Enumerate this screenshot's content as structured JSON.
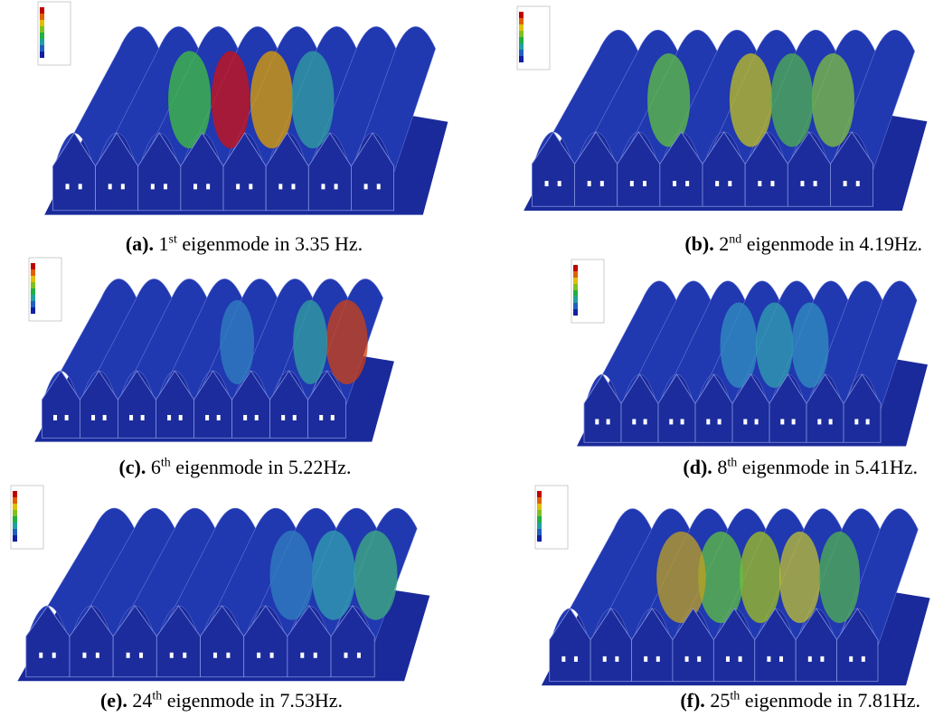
{
  "panels": [
    {
      "label": "(a).",
      "ordinal": "1",
      "suffix": "st",
      "text": "eigenmode in 3.35 Hz."
    },
    {
      "label": "(b).",
      "ordinal": "2",
      "suffix": "nd",
      "text": "eigenmode in 4.19Hz."
    },
    {
      "label": "(c).",
      "ordinal": "6",
      "suffix": "th",
      "text": "eigenmode in 5.22Hz."
    },
    {
      "label": "(d).",
      "ordinal": "8",
      "suffix": "th",
      "text": "eigenmode in 5.41Hz."
    },
    {
      "label": "(e).",
      "ordinal": "24",
      "suffix": "th",
      "text": "eigenmode in 7.53Hz."
    },
    {
      "label": "(f).",
      "ordinal": "25",
      "suffix": "th",
      "text": "eigenmode in 7.81Hz."
    }
  ]
}
